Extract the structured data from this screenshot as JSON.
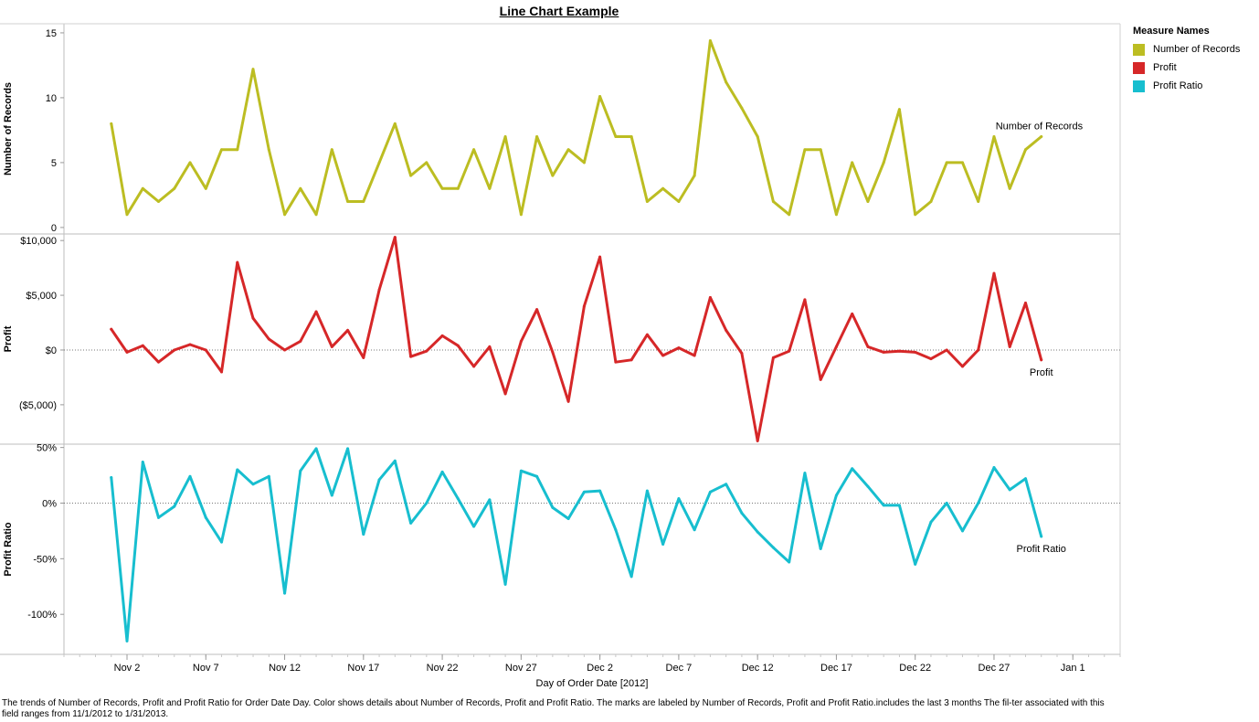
{
  "chart_data": {
    "type": "line",
    "title": "Line Chart Example",
    "xlabel": "Day of Order Date [2012]",
    "x_ticks": [
      "Nov 2",
      "Nov 7",
      "Nov 12",
      "Nov 17",
      "Nov 22",
      "Nov 27",
      "Dec 2",
      "Dec 7",
      "Dec 12",
      "Dec 17",
      "Dec 22",
      "Dec 27",
      "Jan 1"
    ],
    "x_range": [
      "2012-10-29",
      "2013-01-04"
    ],
    "x": [
      "2012-11-01",
      "2012-11-02",
      "2012-11-03",
      "2012-11-04",
      "2012-11-05",
      "2012-11-06",
      "2012-11-07",
      "2012-11-08",
      "2012-11-09",
      "2012-11-10",
      "2012-11-11",
      "2012-11-12",
      "2012-11-13",
      "2012-11-14",
      "2012-11-15",
      "2012-11-16",
      "2012-11-17",
      "2012-11-18",
      "2012-11-19",
      "2012-11-20",
      "2012-11-21",
      "2012-11-22",
      "2012-11-23",
      "2012-11-24",
      "2012-11-25",
      "2012-11-26",
      "2012-11-27",
      "2012-11-28",
      "2012-11-29",
      "2012-11-30",
      "2012-12-01",
      "2012-12-02",
      "2012-12-03",
      "2012-12-04",
      "2012-12-05",
      "2012-12-06",
      "2012-12-07",
      "2012-12-08",
      "2012-12-09",
      "2012-12-10",
      "2012-12-11",
      "2012-12-12",
      "2012-12-13",
      "2012-12-14",
      "2012-12-15",
      "2012-12-16",
      "2012-12-17",
      "2012-12-18",
      "2012-12-19",
      "2012-12-20",
      "2012-12-21",
      "2012-12-22",
      "2012-12-23",
      "2012-12-24",
      "2012-12-25",
      "2012-12-26",
      "2012-12-27",
      "2012-12-28",
      "2012-12-29",
      "2012-12-30"
    ],
    "panels": [
      {
        "name": "Number of Records",
        "ylabel": "Number of Records",
        "ylim": [
          -0.5,
          15.7
        ],
        "yticks": [
          0,
          5,
          10,
          15
        ],
        "ytick_labels": [
          "0",
          "5",
          "10",
          "15"
        ],
        "zero_line": false,
        "color": "#bcbd22",
        "end_label": "Number of Records",
        "values": [
          8,
          1,
          3,
          2,
          3,
          5,
          3,
          6,
          6,
          12.2,
          6,
          1,
          3,
          1,
          6,
          2,
          2,
          5,
          8,
          4,
          5,
          3,
          3,
          6,
          3,
          7,
          1,
          7,
          4,
          6,
          5,
          10.1,
          7,
          7,
          2,
          3,
          2,
          4,
          14.4,
          11.2,
          9.2,
          7,
          2,
          1,
          6,
          6,
          1,
          5,
          2,
          5,
          9.1,
          1,
          2,
          5,
          5,
          2,
          7,
          3,
          6,
          7
        ]
      },
      {
        "name": "Profit",
        "ylabel": "Profit",
        "ylim": [
          -8600,
          10600
        ],
        "yticks": [
          10000,
          5000,
          0,
          -5000
        ],
        "ytick_labels": [
          "$10,000",
          "$5,000",
          "$0",
          "($5,000)"
        ],
        "zero_line": true,
        "color": "#d62728",
        "end_label": "Profit",
        "values": [
          1900,
          -200,
          400,
          -1100,
          0,
          500,
          0,
          -2000,
          8000,
          2900,
          1000,
          0,
          800,
          3500,
          300,
          1800,
          -700,
          5500,
          10300,
          -600,
          -100,
          1300,
          400,
          -1500,
          300,
          -4000,
          800,
          3700,
          -200,
          -4700,
          4000,
          8500,
          -1100,
          -900,
          1400,
          -500,
          200,
          -500,
          4800,
          1800,
          -300,
          -8300,
          -700,
          -100,
          4600,
          -2700,
          300,
          3300,
          300,
          -200,
          -100,
          -200,
          -800,
          0,
          -1500,
          0,
          7000,
          300,
          4300,
          -900
        ]
      },
      {
        "name": "Profit Ratio",
        "ylabel": "Profit Ratio",
        "ylim": [
          -1.36,
          0.53
        ],
        "yticks": [
          0.5,
          0,
          -0.5,
          -1
        ],
        "ytick_labels": [
          "50%",
          "0%",
          "-50%",
          "-100%"
        ],
        "zero_line": true,
        "color": "#17becf",
        "end_label": "Profit Ratio",
        "values": [
          0.23,
          -1.24,
          0.37,
          -0.13,
          -0.03,
          0.24,
          -0.13,
          -0.35,
          0.3,
          0.17,
          0.24,
          -0.81,
          0.29,
          0.49,
          0.07,
          0.49,
          -0.28,
          0.21,
          0.38,
          -0.18,
          0.0,
          0.28,
          0.04,
          -0.21,
          0.03,
          -0.73,
          0.29,
          0.24,
          -0.04,
          -0.14,
          0.1,
          0.11,
          -0.24,
          -0.66,
          0.11,
          -0.37,
          0.04,
          -0.24,
          0.1,
          0.17,
          -0.09,
          -0.26,
          -0.4,
          -0.53,
          0.27,
          -0.41,
          0.07,
          0.31,
          0.15,
          -0.02,
          -0.02,
          -0.55,
          -0.17,
          0.0,
          -0.25,
          0.0,
          0.32,
          0.12,
          0.22,
          -0.3
        ]
      }
    ],
    "legend": {
      "title": "Measure Names",
      "placement": "right",
      "items": [
        {
          "label": "Number of Records",
          "color": "#bcbd22"
        },
        {
          "label": "Profit",
          "color": "#d62728"
        },
        {
          "label": "Profit Ratio",
          "color": "#17becf"
        }
      ]
    },
    "grid": false
  },
  "caption": "The trends of Number of Records, Profit and Profit Ratio for Order Date Day.  Color shows details about Number of Records, Profit and Profit Ratio.  The marks are labeled by Number of Records, Profit and Profit Ratio.includes the last 3 months The fil-ter associated with this field ranges from 11/1/2012 to 1/31/2013."
}
